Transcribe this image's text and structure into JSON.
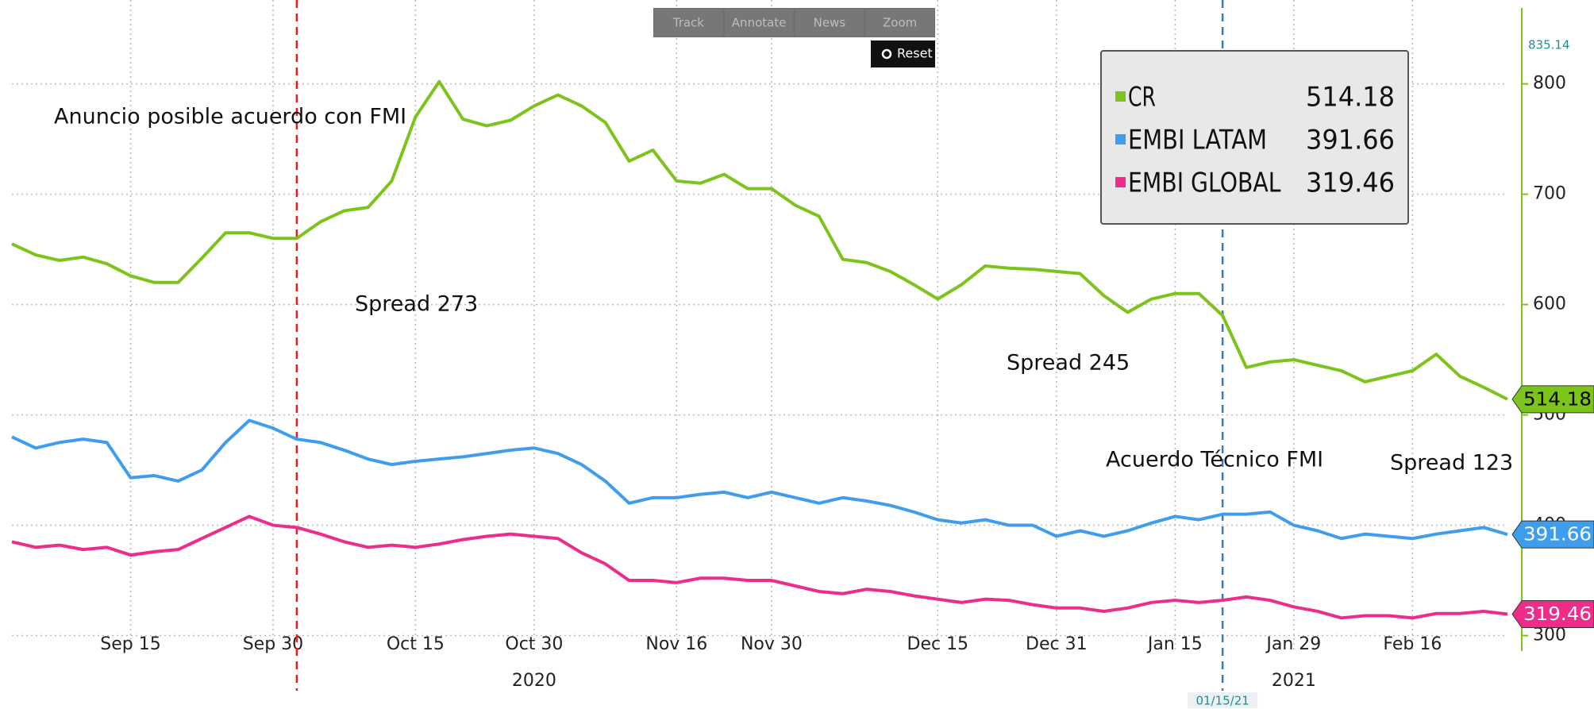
{
  "chart_data": {
    "type": "line",
    "toolbar": [
      "Track",
      "Annotate",
      "News",
      "Zoom"
    ],
    "reset": "Reset",
    "categories": [
      null,
      null,
      null,
      null,
      null,
      "Sep 15",
      null,
      null,
      null,
      null,
      null,
      "Sep 30",
      null,
      null,
      null,
      null,
      null,
      "Oct 15",
      null,
      null,
      null,
      null,
      "Oct 30",
      null,
      null,
      null,
      null,
      null,
      "Nov 16",
      null,
      null,
      null,
      "Nov 30",
      null,
      null,
      null,
      null,
      null,
      null,
      "Dec 15",
      null,
      null,
      null,
      null,
      "Dec 31",
      null,
      null,
      null,
      null,
      "Jan 15",
      null,
      null,
      null,
      null,
      "Jan 29",
      null,
      null,
      null,
      null,
      "Feb 16",
      null,
      null,
      null,
      null
    ],
    "category_years": [
      null,
      null,
      null,
      null,
      null,
      null,
      null,
      null,
      null,
      null,
      null,
      null,
      null,
      null,
      null,
      null,
      null,
      null,
      null,
      null,
      null,
      null,
      "2020",
      null,
      null,
      null,
      null,
      null,
      null,
      null,
      null,
      null,
      null,
      null,
      null,
      null,
      null,
      null,
      null,
      null,
      null,
      null,
      null,
      null,
      null,
      null,
      null,
      null,
      null,
      null,
      null,
      null,
      null,
      null,
      "2021",
      null,
      null,
      null,
      null,
      null,
      null,
      null,
      null,
      null
    ],
    "series": [
      {
        "name": "CR",
        "color": "#7cc41c",
        "label_text_color": "#000000",
        "values": [
          655,
          645,
          640,
          643,
          637,
          626,
          620,
          620,
          642,
          665,
          665,
          660,
          660,
          675,
          685,
          688,
          712,
          770,
          802,
          768,
          762,
          767,
          780,
          790,
          780,
          765,
          730,
          740,
          712,
          710,
          718,
          705,
          705,
          690,
          680,
          641,
          638,
          630,
          618,
          605,
          618,
          635,
          633,
          632,
          630,
          628,
          608,
          593,
          605,
          610,
          610,
          590,
          543,
          548,
          550,
          545,
          540,
          530,
          535,
          540,
          555,
          535,
          525,
          514.18
        ]
      },
      {
        "name": "EMBI LATAM",
        "color": "#3f9ded",
        "label_text_color": "#ffffff",
        "values": [
          480,
          470,
          475,
          478,
          475,
          443,
          445,
          440,
          450,
          475,
          495,
          488,
          478,
          475,
          468,
          460,
          455,
          458,
          460,
          462,
          465,
          468,
          470,
          465,
          455,
          440,
          420,
          425,
          425,
          428,
          430,
          425,
          430,
          425,
          420,
          425,
          422,
          418,
          412,
          405,
          402,
          405,
          400,
          400,
          390,
          395,
          390,
          395,
          402,
          408,
          405,
          410,
          410,
          412,
          400,
          395,
          388,
          392,
          390,
          388,
          392,
          395,
          398,
          391.66
        ]
      },
      {
        "name": "EMBI GLOBAL",
        "color": "#ee2c8a",
        "label_text_color": "#ffffff",
        "values": [
          385,
          380,
          382,
          378,
          380,
          373,
          376,
          378,
          388,
          398,
          408,
          400,
          398,
          392,
          385,
          380,
          382,
          380,
          383,
          387,
          390,
          392,
          390,
          388,
          375,
          365,
          350,
          350,
          348,
          352,
          352,
          350,
          350,
          345,
          340,
          338,
          342,
          340,
          336,
          333,
          330,
          333,
          332,
          328,
          325,
          325,
          322,
          325,
          330,
          332,
          330,
          332,
          335,
          332,
          326,
          322,
          316,
          318,
          318,
          316,
          320,
          320,
          322,
          319.46
        ]
      }
    ],
    "ylim": [
      286,
      876
    ],
    "yticks": [
      300,
      400,
      500,
      600,
      700,
      800
    ],
    "y_max_label": 835.14,
    "axis_color": "#7cc41c",
    "grid": true,
    "legend_position": "top-right",
    "markers": [
      {
        "index": 12,
        "color": "#e0231f"
      },
      {
        "index": 51,
        "color": "#3a78c0",
        "label": "01/15/21"
      }
    ],
    "annotations": [
      "Anuncio posible acuerdo con FMI",
      "Spread 273",
      "Spread 245",
      "Acuerdo Técnico FMI",
      "Spread 123"
    ]
  }
}
